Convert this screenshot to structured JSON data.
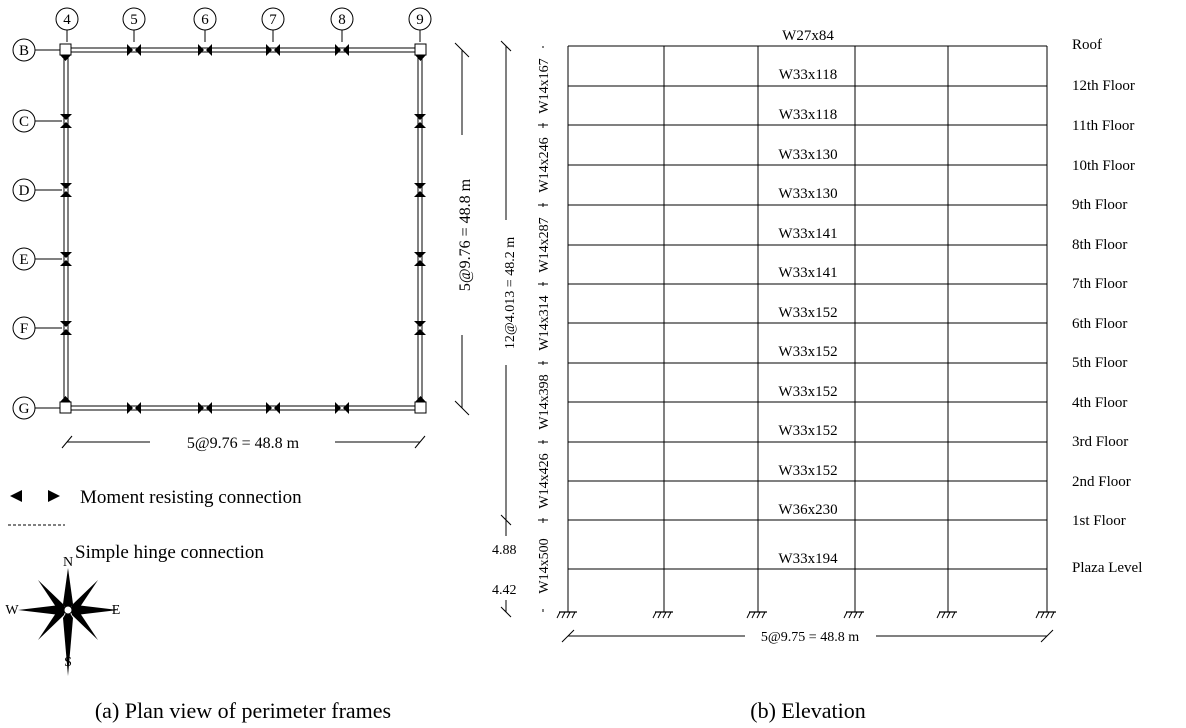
{
  "plan": {
    "grid_columns": [
      "4",
      "5",
      "6",
      "7",
      "8",
      "9"
    ],
    "grid_rows": [
      "B",
      "C",
      "D",
      "E",
      "F",
      "G"
    ],
    "dim_vertical": "5@9.76 = 48.8 m",
    "dim_horizontal": "5@9.76 = 48.8 m",
    "legend": {
      "moment": "Moment resisting connection",
      "hinge": "Simple hinge connection"
    },
    "compass": {
      "n": "N",
      "s": "S",
      "w": "W",
      "e": "E"
    },
    "caption": "(a) Plan view of perimeter frames"
  },
  "elevation": {
    "beams": [
      "W27x84",
      "W33x118",
      "W33x118",
      "W33x130",
      "W33x130",
      "W33x141",
      "W33x141",
      "W33x152",
      "W33x152",
      "W33x152",
      "W33x152",
      "W33x152",
      "W36x230",
      "W33x194"
    ],
    "floors": [
      "Roof",
      "12th Floor",
      "11th Floor",
      "10th Floor",
      "9th Floor",
      "8th Floor",
      "7th Floor",
      "6th Floor",
      "5th Floor",
      "4th Floor",
      "3rd Floor",
      "2nd Floor",
      "1st Floor",
      "Plaza Level"
    ],
    "columns": [
      "W14x167",
      "W14x246",
      "W14x287",
      "W14x314",
      "W14x398",
      "W14x426",
      "W14x500"
    ],
    "dim_height": "12@4.013 = 48.2 m",
    "dim_first": "4.88",
    "dim_plaza": "4.42",
    "dim_width": "5@9.75 = 48.8 m",
    "caption": "(b) Elevation"
  }
}
